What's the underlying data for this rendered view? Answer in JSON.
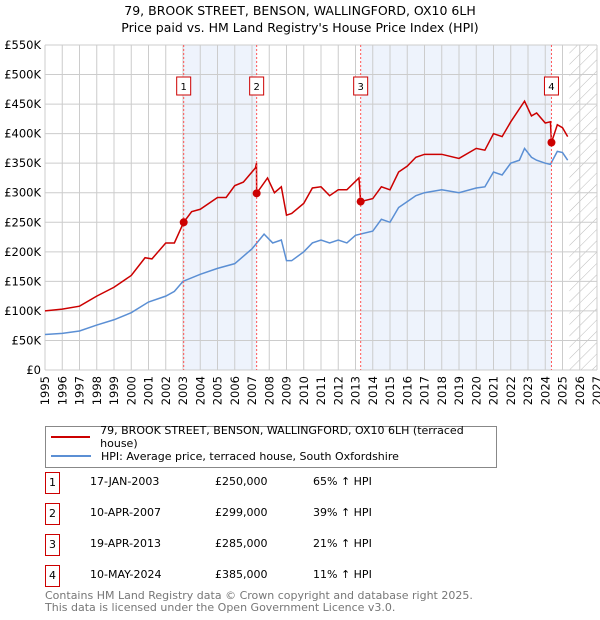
{
  "chart_data": {
    "type": "line",
    "title": "79, BROOK STREET, BENSON, WALLINGFORD, OX10 6LH",
    "subtitle": "Price paid vs. HM Land Registry's House Price Index (HPI)",
    "xlim": [
      1995,
      2027
    ],
    "ylim": [
      0,
      550000
    ],
    "x_ticks": [
      "1995",
      "1996",
      "1997",
      "1998",
      "1999",
      "2000",
      "2001",
      "2002",
      "2003",
      "2004",
      "2005",
      "2006",
      "2007",
      "2008",
      "2009",
      "2010",
      "2011",
      "2012",
      "2013",
      "2014",
      "2015",
      "2016",
      "2017",
      "2018",
      "2019",
      "2020",
      "2021",
      "2022",
      "2023",
      "2024",
      "2025",
      "2026",
      "2027"
    ],
    "y_ticks": [
      {
        "v": 0,
        "label": "£0"
      },
      {
        "v": 50000,
        "label": "£50K"
      },
      {
        "v": 100000,
        "label": "£100K"
      },
      {
        "v": 150000,
        "label": "£150K"
      },
      {
        "v": 200000,
        "label": "£200K"
      },
      {
        "v": 250000,
        "label": "£250K"
      },
      {
        "v": 300000,
        "label": "£300K"
      },
      {
        "v": 350000,
        "label": "£350K"
      },
      {
        "v": 400000,
        "label": "£400K"
      },
      {
        "v": 450000,
        "label": "£450K"
      },
      {
        "v": 500000,
        "label": "£500K"
      },
      {
        "v": 550000,
        "label": "£550K"
      }
    ],
    "grid": true,
    "shaded_ranges": [
      [
        2003.04,
        2007.27
      ],
      [
        2013.3,
        2024.36
      ]
    ],
    "forecast_hatch_from": 2025.4,
    "series": [
      {
        "name": "79, BROOK STREET, BENSON, WALLINGFORD, OX10 6LH (terraced house)",
        "color": "#cc0000",
        "x": [
          1995,
          1996,
          1997,
          1998,
          1999,
          2000,
          2000.8,
          2001.2,
          2002,
          2002.5,
          2003.04,
          2003.5,
          2004,
          2005,
          2005.5,
          2006,
          2006.5,
          2007.2,
          2007.26,
          2007.27,
          2007.9,
          2008.3,
          2008.7,
          2009,
          2009.3,
          2010,
          2010.5,
          2011,
          2011.5,
          2012,
          2012.5,
          2013.2,
          2013.3,
          2014,
          2014.5,
          2015,
          2015.5,
          2016,
          2016.5,
          2017,
          2018,
          2019,
          2020,
          2020.5,
          2021,
          2021.5,
          2022,
          2022.8,
          2023.2,
          2023.5,
          2024,
          2024.3,
          2024.36,
          2024.7,
          2025,
          2025.3
        ],
        "y": [
          100000,
          103000,
          108000,
          125000,
          140000,
          160000,
          190000,
          188000,
          215000,
          215000,
          250000,
          268000,
          272000,
          292000,
          292000,
          312000,
          318000,
          342000,
          350000,
          299000,
          325000,
          300000,
          310000,
          262000,
          265000,
          282000,
          308000,
          310000,
          295000,
          305000,
          305000,
          325000,
          285000,
          290000,
          310000,
          305000,
          335000,
          345000,
          360000,
          365000,
          365000,
          358000,
          375000,
          372000,
          400000,
          395000,
          420000,
          455000,
          430000,
          435000,
          418000,
          420000,
          385000,
          415000,
          410000,
          395000
        ]
      },
      {
        "name": "HPI: Average price, terraced house, South Oxfordshire",
        "color": "#5b8fd4",
        "x": [
          1995,
          1996,
          1997,
          1998,
          1999,
          2000,
          2001,
          2002,
          2002.5,
          2003,
          2004,
          2005,
          2006,
          2007,
          2007.7,
          2008.2,
          2008.7,
          2009,
          2009.3,
          2010,
          2010.5,
          2011,
          2011.5,
          2012,
          2012.5,
          2013,
          2014,
          2014.5,
          2015,
          2015.5,
          2016,
          2016.5,
          2017,
          2018,
          2019,
          2020,
          2020.5,
          2021,
          2021.5,
          2022,
          2022.5,
          2022.8,
          2023.2,
          2023.5,
          2024,
          2024.3,
          2024.7,
          2025,
          2025.3
        ],
        "y": [
          60000,
          62000,
          66000,
          76000,
          85000,
          97000,
          115000,
          125000,
          133000,
          150000,
          162000,
          172000,
          180000,
          205000,
          230000,
          215000,
          220000,
          185000,
          185000,
          200000,
          215000,
          220000,
          215000,
          220000,
          215000,
          228000,
          235000,
          255000,
          250000,
          275000,
          285000,
          295000,
          300000,
          305000,
          300000,
          308000,
          310000,
          335000,
          330000,
          350000,
          355000,
          375000,
          360000,
          355000,
          350000,
          348000,
          370000,
          368000,
          355000
        ]
      }
    ],
    "sales": [
      {
        "n": "1",
        "x": 2003.04,
        "price": 250000,
        "date": "17-JAN-2003",
        "price_label": "£250,000",
        "hpi": "65% ↑ HPI"
      },
      {
        "n": "2",
        "x": 2007.27,
        "price": 299000,
        "date": "10-APR-2007",
        "price_label": "£299,000",
        "hpi": "39% ↑ HPI"
      },
      {
        "n": "3",
        "x": 2013.3,
        "price": 285000,
        "date": "19-APR-2013",
        "price_label": "£285,000",
        "hpi": "21% ↑ HPI"
      },
      {
        "n": "4",
        "x": 2024.36,
        "price": 385000,
        "date": "10-MAY-2024",
        "price_label": "£385,000",
        "hpi": "11% ↑ HPI"
      }
    ]
  },
  "footer": [
    "Contains HM Land Registry data © Crown copyright and database right 2025.",
    "This data is licensed under the Open Government Licence v3.0."
  ]
}
